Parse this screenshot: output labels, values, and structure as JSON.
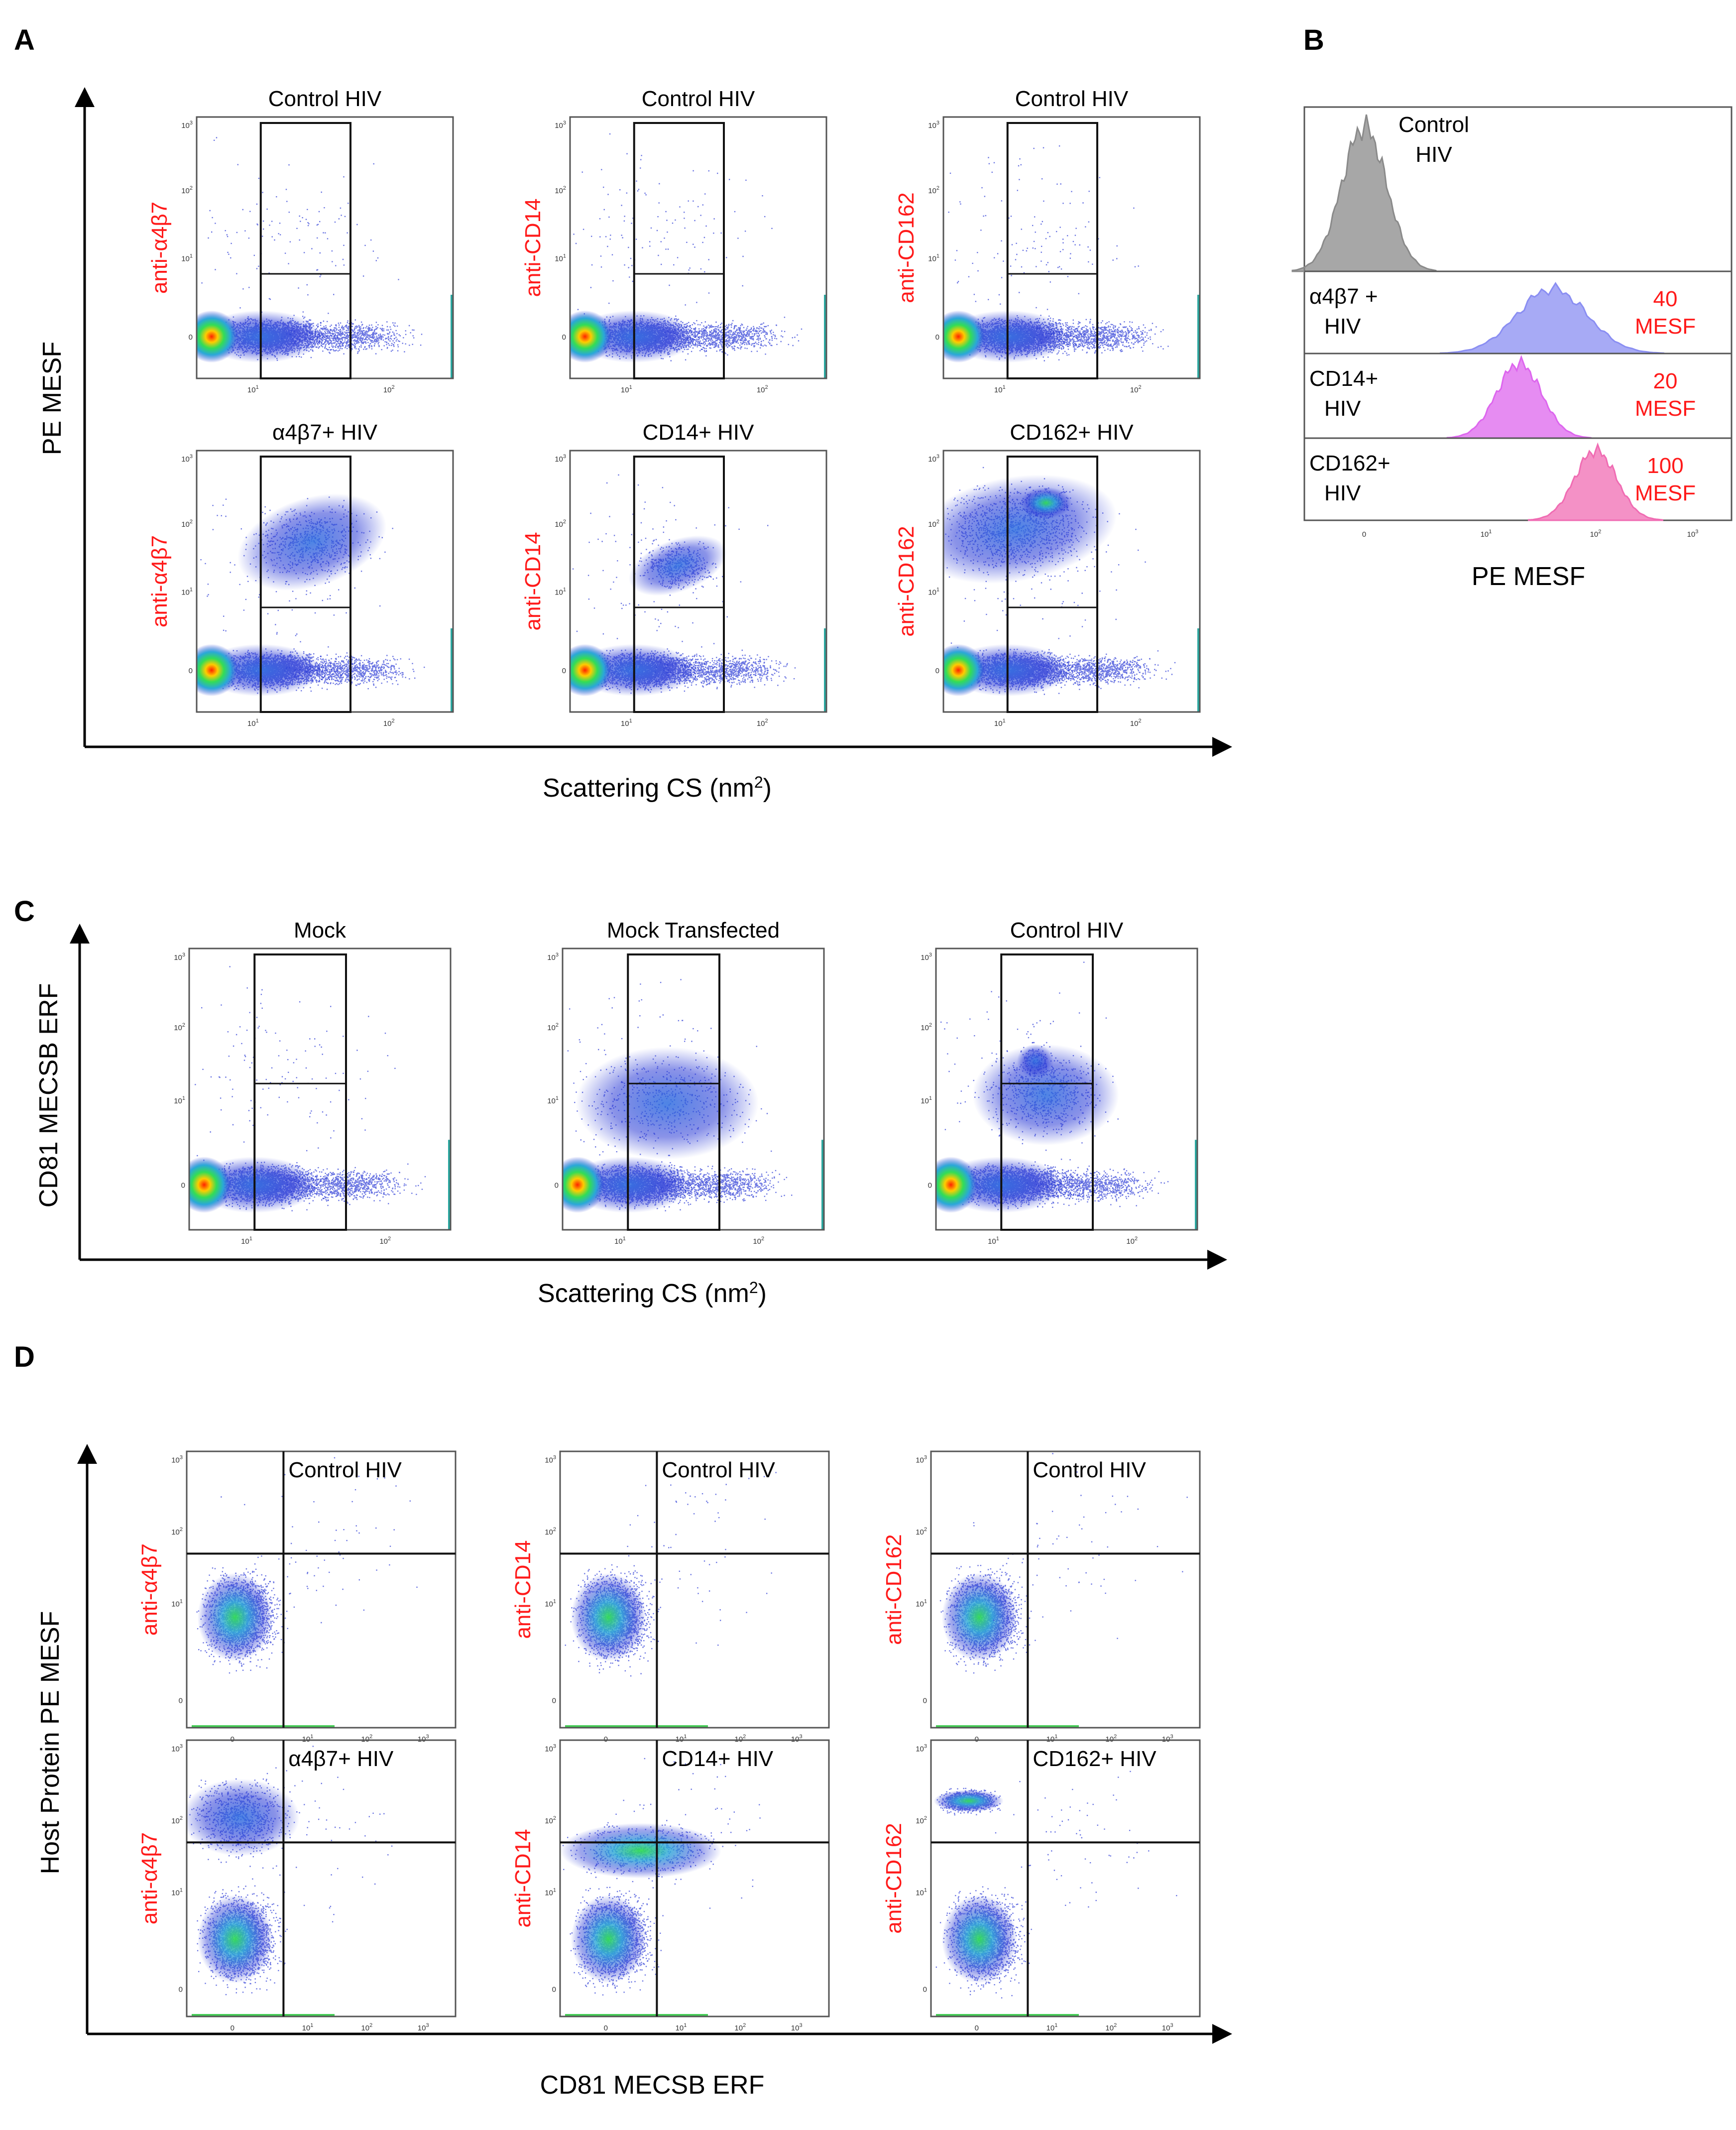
{
  "colors": {
    "red": "#ff1a1a",
    "control": "#8a8a8a",
    "a4b7": "#8a8ef2",
    "cd14": "#dd66ee",
    "cd162": "#f06cb3"
  },
  "panels": {
    "A": {
      "label": "A",
      "ylabel": "PE MESF",
      "xlabel_main": "Scattering CS (nm",
      "xlabel_sup": "2",
      "xlabel_end": ")",
      "plots": [
        {
          "title": "Control HIV",
          "ylabel": "anti-α4β7"
        },
        {
          "title": "Control HIV",
          "ylabel": "anti-CD14"
        },
        {
          "title": "Control HIV",
          "ylabel": "anti-CD162"
        },
        {
          "title": "α4β7+ HIV",
          "ylabel": "anti-α4β7"
        },
        {
          "title": "CD14+ HIV",
          "ylabel": "anti-CD14"
        },
        {
          "title": "CD162+ HIV",
          "ylabel": "anti-CD162"
        }
      ]
    },
    "B": {
      "label": "B",
      "xlabel": "PE MESF",
      "rows": [
        {
          "name1": "Control",
          "name2": "HIV",
          "value": "",
          "unit": ""
        },
        {
          "name1": "α4β7 +",
          "name2": "HIV",
          "value": "40",
          "unit": "MESF"
        },
        {
          "name1": "CD14+",
          "name2": "HIV",
          "value": "20",
          "unit": "MESF"
        },
        {
          "name1": "CD162+",
          "name2": "HIV",
          "value": "100",
          "unit": "MESF"
        }
      ]
    },
    "C": {
      "label": "C",
      "ylabel": "CD81 MECSB ERF",
      "xlabel_main": "Scattering CS (nm",
      "xlabel_sup": "2",
      "xlabel_end": ")",
      "plots": [
        {
          "title": "Mock"
        },
        {
          "title": "Mock Transfected"
        },
        {
          "title": "Control HIV"
        }
      ]
    },
    "D": {
      "label": "D",
      "ylabel": "Host Protein PE MESF",
      "xlabel": "CD81 MECSB ERF",
      "plots": [
        {
          "title": "Control HIV",
          "ylabel": "anti-α4β7"
        },
        {
          "title": "Control HIV",
          "ylabel": "anti-CD14"
        },
        {
          "title": "Control HIV",
          "ylabel": "anti-CD162"
        },
        {
          "title": "α4β7+ HIV",
          "ylabel": "anti-α4β7"
        },
        {
          "title": "CD14+ HIV",
          "ylabel": "anti-CD14"
        },
        {
          "title": "CD162+ HIV",
          "ylabel": "anti-CD162"
        }
      ]
    }
  },
  "ticks": {
    "scatter_x": [
      "10",
      "10"
    ],
    "scatter_x_exp": [
      "1",
      "2"
    ],
    "scatter_y": [
      "10",
      "10",
      "10",
      "0"
    ],
    "scatter_y_exp": [
      "3",
      "2",
      "1",
      ""
    ],
    "quad_x": [
      "0",
      "10",
      "10",
      "10"
    ],
    "quad_x_exp": [
      "",
      "1",
      "2",
      "3"
    ],
    "hist_x": [
      "0",
      "10",
      "10",
      "10"
    ],
    "hist_x_exp": [
      "",
      "1",
      "2",
      "3"
    ]
  },
  "chart_data": {
    "type": "histogram",
    "title": "",
    "xlabel": "PE MESF",
    "ylabel": "",
    "xscale": "log",
    "series": [
      {
        "name": "Control HIV",
        "peak_mesf": 0
      },
      {
        "name": "α4β7 + HIV",
        "peak_mesf": 40
      },
      {
        "name": "CD14+ HIV",
        "peak_mesf": 20
      },
      {
        "name": "CD162+ HIV",
        "peak_mesf": 100
      }
    ]
  }
}
